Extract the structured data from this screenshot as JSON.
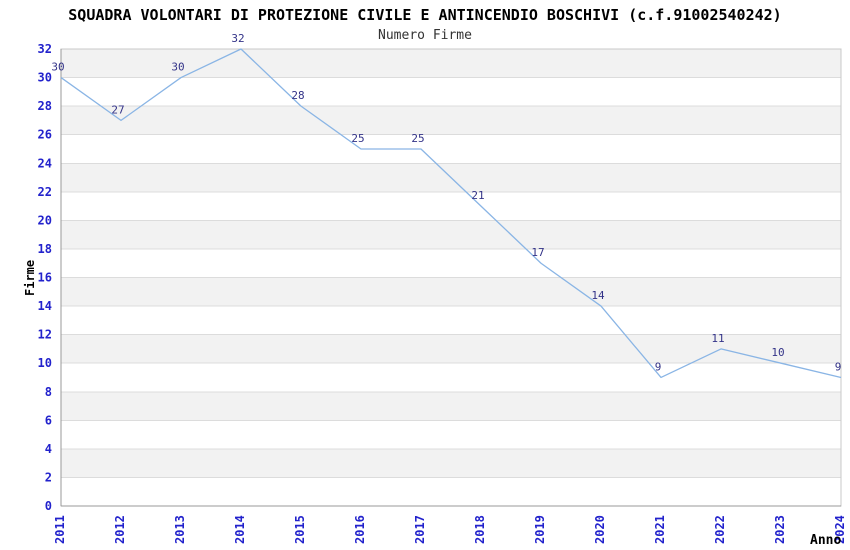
{
  "chart_data": {
    "type": "line",
    "title": "SQUADRA VOLONTARI DI PROTEZIONE CIVILE E ANTINCENDIO BOSCHIVI (c.f.91002540242)",
    "subtitle": "Numero Firme",
    "xlabel": "Anno",
    "ylabel": "Firme",
    "categories": [
      "2011",
      "2012",
      "2013",
      "2014",
      "2015",
      "2016",
      "2017",
      "2018",
      "2019",
      "2020",
      "2021",
      "2022",
      "2023",
      "2024"
    ],
    "values": [
      30,
      27,
      30,
      32,
      28,
      25,
      25,
      21,
      17,
      14,
      9,
      11,
      10,
      9
    ],
    "ylim": [
      0,
      32
    ],
    "ytick_step": 2,
    "grid": true,
    "bands": "alternating-horizontal",
    "legend": "none",
    "colors": {
      "line": "#8ab5e5",
      "tick_label": "#2222cc",
      "value_label": "#333388",
      "band": "#f2f2f2",
      "grid": "#dcdcdc",
      "border": "#c8c8c8",
      "axis": "#999999",
      "title": "#000000",
      "subtitle": "#333333",
      "background": "#ffffff"
    }
  }
}
